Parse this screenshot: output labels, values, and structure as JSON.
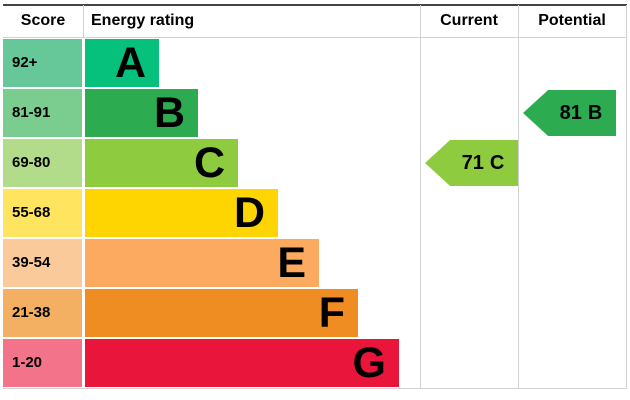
{
  "header": {
    "score": "Score",
    "energy_rating": "Energy rating",
    "current": "Current",
    "potential": "Potential"
  },
  "bands": [
    {
      "score": "92+",
      "letter": "A",
      "color": "#06c17c",
      "score_color": "#66c798"
    },
    {
      "score": "81-91",
      "letter": "B",
      "color": "#2cab51",
      "score_color": "#7bcc8f"
    },
    {
      "score": "69-80",
      "letter": "C",
      "color": "#8ecb3e",
      "score_color": "#b3dc8a"
    },
    {
      "score": "55-68",
      "letter": "D",
      "color": "#fed401",
      "score_color": "#ffe55f"
    },
    {
      "score": "39-54",
      "letter": "E",
      "color": "#fbaa5f",
      "score_color": "#fbca9a"
    },
    {
      "score": "21-38",
      "letter": "F",
      "color": "#ef8c22",
      "score_color": "#f4b062"
    },
    {
      "score": "1-20",
      "letter": "G",
      "color": "#e9153b",
      "score_color": "#f2738a"
    }
  ],
  "current": {
    "score": "71",
    "letter": "C",
    "color": "#8ecb3e"
  },
  "potential": {
    "score": "81",
    "letter": "B",
    "color": "#2cab51"
  },
  "chart_data": {
    "type": "bar",
    "title": "",
    "categories": [
      "A",
      "B",
      "C",
      "D",
      "E",
      "F",
      "G"
    ],
    "score_ranges": [
      "92+",
      "81-91",
      "69-80",
      "55-68",
      "39-54",
      "21-38",
      "1-20"
    ],
    "band_colors": [
      "#06c17c",
      "#2cab51",
      "#8ecb3e",
      "#fed401",
      "#fbaa5f",
      "#ef8c22",
      "#e9153b"
    ],
    "bar_relative_widths": [
      74,
      113,
      153,
      193,
      234,
      273,
      314
    ],
    "markers": [
      {
        "name": "Current",
        "value": 71,
        "band": "C",
        "color": "#8ecb3e"
      },
      {
        "name": "Potential",
        "value": 81,
        "band": "B",
        "color": "#2cab51"
      }
    ],
    "legend_position": "none",
    "grid": false
  }
}
